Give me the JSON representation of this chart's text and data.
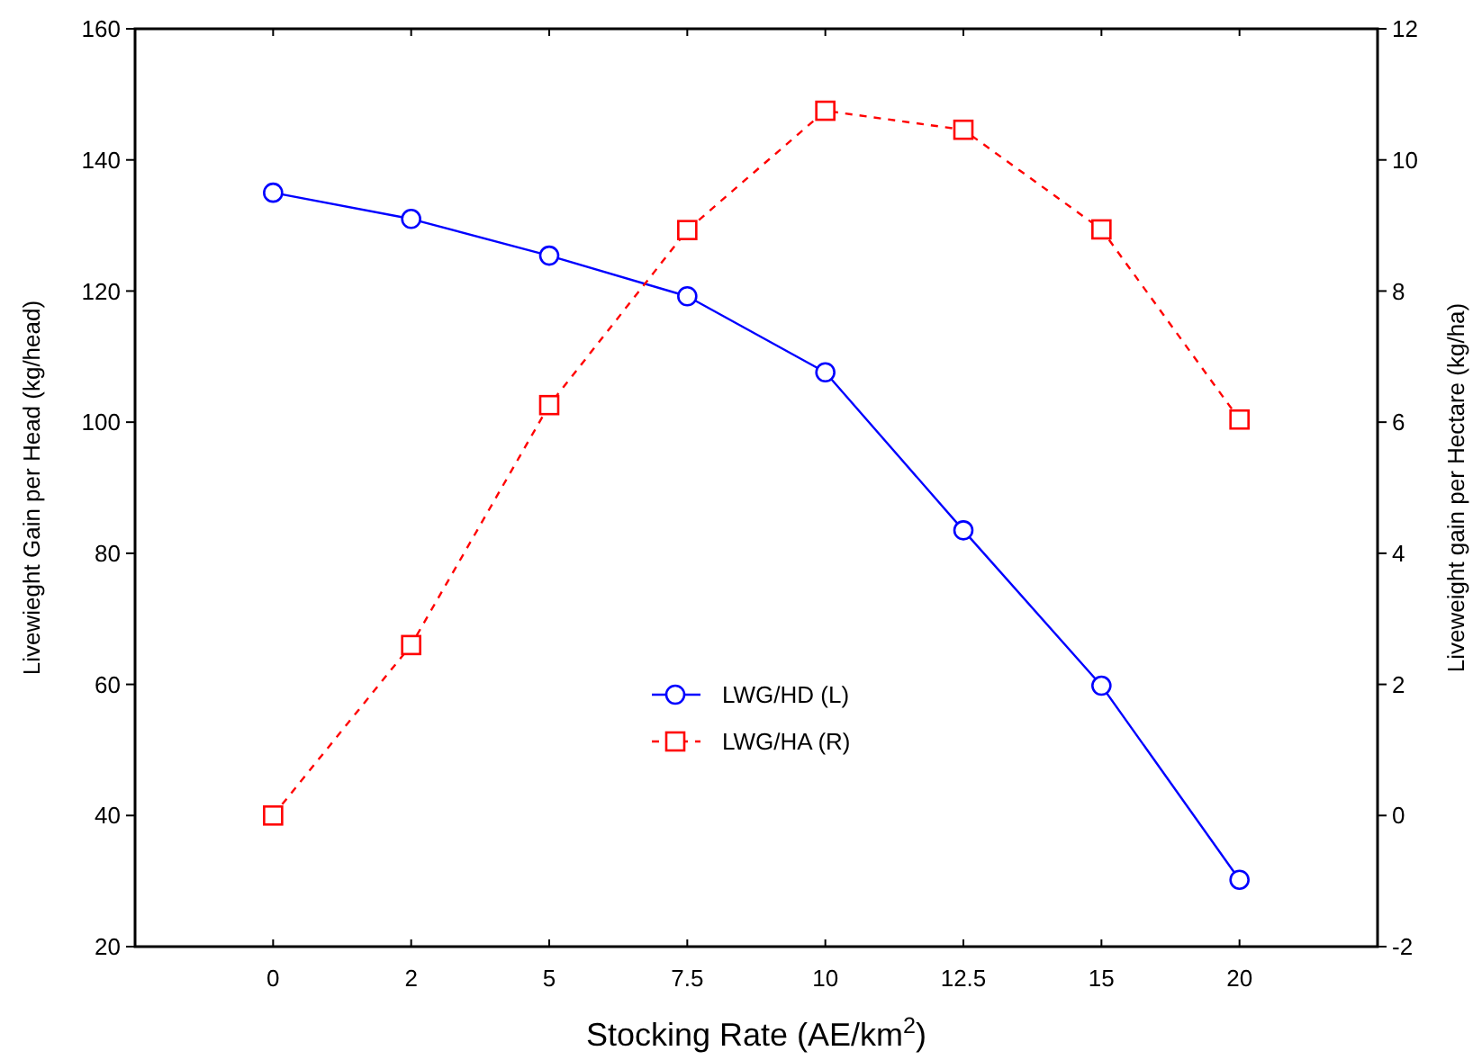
{
  "chart_data": {
    "type": "line",
    "xlabel": "Stocking Rate (AE/km$^{2}$)",
    "ylabel": "Livewieght Gain per Head (kg/head)",
    "y2label": "Liveweight gain per Hectare (kg/ha)",
    "categories": [
      "0",
      "2",
      "5",
      "7.5",
      "10",
      "12.5",
      "15",
      "20"
    ],
    "series": [
      {
        "name": "LWG/HD (L)",
        "color": "#0000ff",
        "marker": "circle",
        "line_style": "solid",
        "values": [
          135,
          131,
          125.4,
          119.2,
          107.6,
          83.5,
          59.8,
          30.2
        ]
      },
      {
        "name": "LWG/HA (R)",
        "color": "#ff0000",
        "marker": "square",
        "line_style": "dashed",
        "axis": "y2",
        "values": [
          0,
          2.6,
          6.26,
          8.93,
          10.75,
          10.46,
          8.94,
          6.04
        ]
      }
    ],
    "ylim": [
      20,
      160
    ],
    "yticks": [
      20,
      40,
      60,
      80,
      100,
      120,
      140,
      160
    ],
    "y2lim": [
      -2,
      12
    ],
    "y2ticks": [
      -2,
      0,
      2,
      4,
      6,
      8,
      10,
      12
    ],
    "grid": false,
    "legend": "center"
  }
}
